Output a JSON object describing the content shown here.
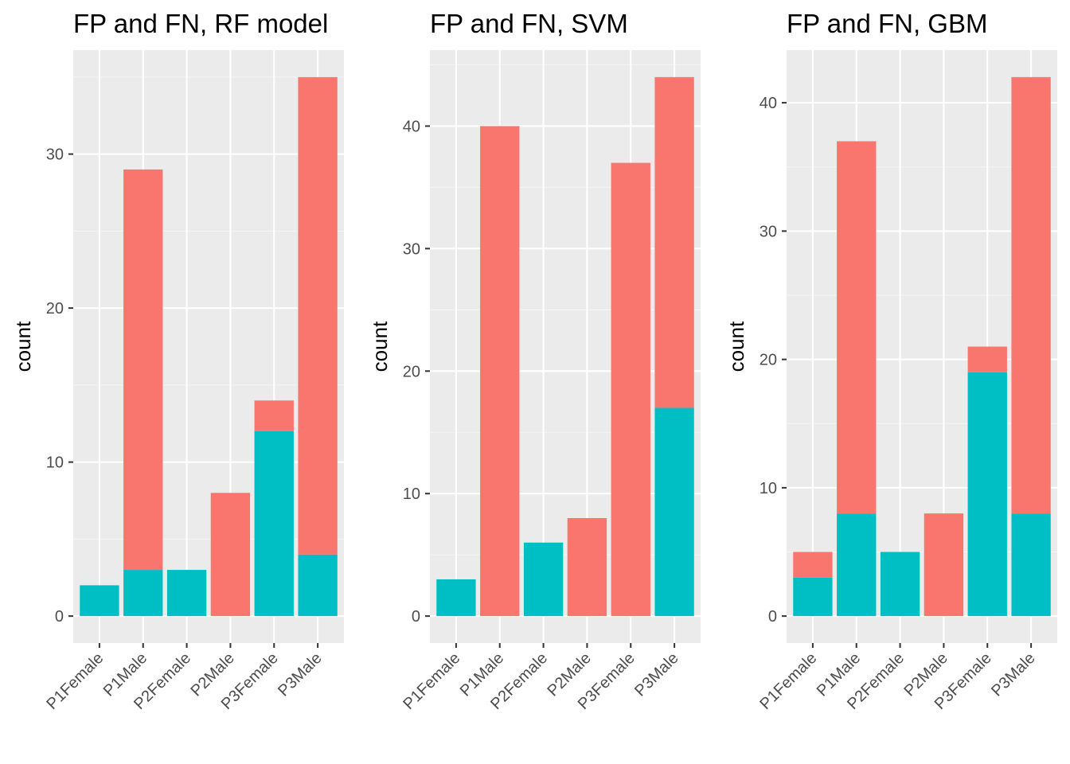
{
  "colors": {
    "panel_background": "#ebebeb",
    "grid_major": "#ffffff",
    "grid_minor": "#f5f5f5",
    "tick_text": "#4d4d4d",
    "tick_mark": "#333333"
  },
  "chart_data": [
    {
      "type": "bar",
      "stacked": true,
      "title": "FP and FN, RF model",
      "xlabel": "",
      "ylabel": "count",
      "ylim": [
        -1.75,
        36.75
      ],
      "yticks": [
        0,
        10,
        20,
        30
      ],
      "categories": [
        "P1Female",
        "P1Male",
        "P2Female",
        "P2Male",
        "P3Female",
        "P3Male"
      ],
      "series": [
        {
          "color": "#00bfc4",
          "values": [
            2,
            3,
            3,
            0,
            12,
            4
          ]
        },
        {
          "color": "#f8766d",
          "values": [
            0,
            26,
            0,
            8,
            2,
            31
          ]
        }
      ],
      "legend": "none",
      "grid": true
    },
    {
      "type": "bar",
      "stacked": true,
      "title": "FP and FN, SVM",
      "xlabel": "",
      "ylabel": "count",
      "ylim": [
        -2.2,
        46.2
      ],
      "yticks": [
        0,
        10,
        20,
        30,
        40
      ],
      "categories": [
        "P1Female",
        "P1Male",
        "P2Female",
        "P2Male",
        "P3Female",
        "P3Male"
      ],
      "series": [
        {
          "color": "#00bfc4",
          "values": [
            3,
            0,
            6,
            0,
            0,
            17
          ]
        },
        {
          "color": "#f8766d",
          "values": [
            0,
            40,
            0,
            8,
            37,
            27
          ]
        }
      ],
      "legend": "none",
      "grid": true
    },
    {
      "type": "bar",
      "stacked": true,
      "title": "FP and FN, GBM",
      "xlabel": "",
      "ylabel": "count",
      "ylim": [
        -2.1,
        44.1
      ],
      "yticks": [
        0,
        10,
        20,
        30,
        40
      ],
      "categories": [
        "P1Female",
        "P1Male",
        "P2Female",
        "P2Male",
        "P3Female",
        "P3Male"
      ],
      "series": [
        {
          "color": "#00bfc4",
          "values": [
            3,
            8,
            5,
            0,
            19,
            8
          ]
        },
        {
          "color": "#f8766d",
          "values": [
            2,
            29,
            0,
            8,
            2,
            34
          ]
        }
      ],
      "legend": "none",
      "grid": true
    }
  ]
}
